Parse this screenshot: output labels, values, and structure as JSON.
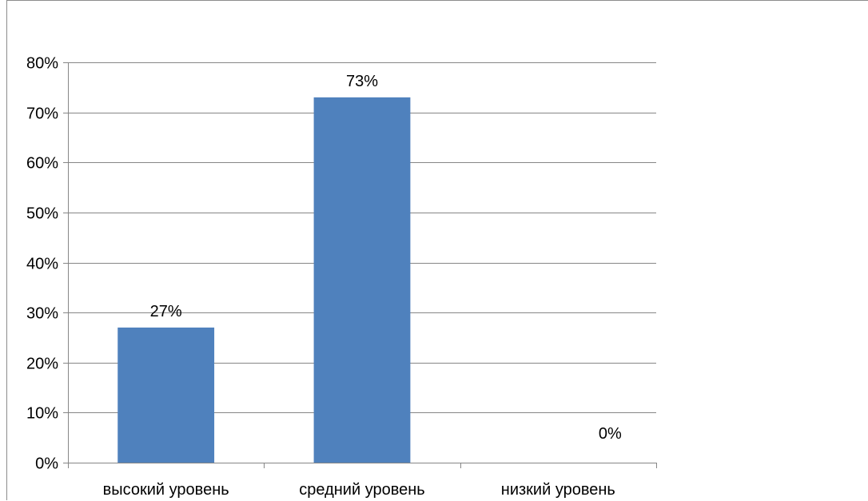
{
  "chart_data": {
    "type": "bar",
    "categories": [
      "высокий уровень",
      "средний уровень",
      "низкий уровень"
    ],
    "values": [
      27,
      73,
      0
    ],
    "data_labels": [
      "27%",
      "73%",
      "0%"
    ],
    "title": "",
    "xlabel": "",
    "ylabel": "",
    "ylim": [
      0,
      80
    ],
    "y_ticks": [
      0,
      10,
      20,
      30,
      40,
      50,
      60,
      70,
      80
    ],
    "y_tick_labels": [
      "0%",
      "10%",
      "20%",
      "30%",
      "40%",
      "50%",
      "60%",
      "70%",
      "80%"
    ],
    "grid": true,
    "legend": "none",
    "colors": {
      "bar": "#4f81bd",
      "gridline": "#868686",
      "axis": "#868686"
    }
  }
}
